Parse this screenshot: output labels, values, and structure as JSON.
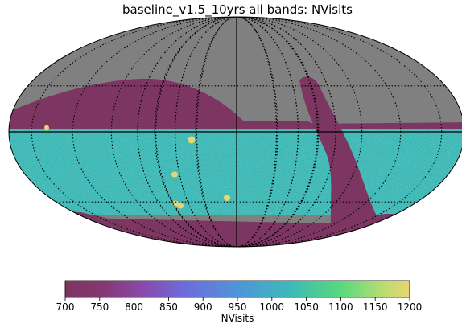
{
  "chart_data": {
    "type": "heatmap",
    "title": "baseline_v1.5_10yrs all bands: NVisits",
    "projection": "mollweide",
    "colormap": "viridis",
    "colorbar": {
      "label": "NVisits",
      "range": [
        700,
        1200
      ],
      "ticks": [
        700,
        750,
        800,
        850,
        900,
        950,
        1000,
        1050,
        1100,
        1150,
        1200
      ],
      "orientation": "horizontal",
      "placement": "bottom"
    },
    "regions": [
      {
        "name": "unobserved",
        "color": "#808080"
      },
      {
        "name": "low-visit northern band",
        "value": 700
      },
      {
        "name": "low-visit galactic plane",
        "value": 700
      },
      {
        "name": "low-visit southern cap",
        "value": 700
      },
      {
        "name": "wide-fast-deep footprint",
        "value_range": [
          930,
          990
        ]
      },
      {
        "name": "deep drilling fields",
        "value": 1200
      }
    ],
    "grid": "dotted graticule",
    "legend": "none"
  }
}
